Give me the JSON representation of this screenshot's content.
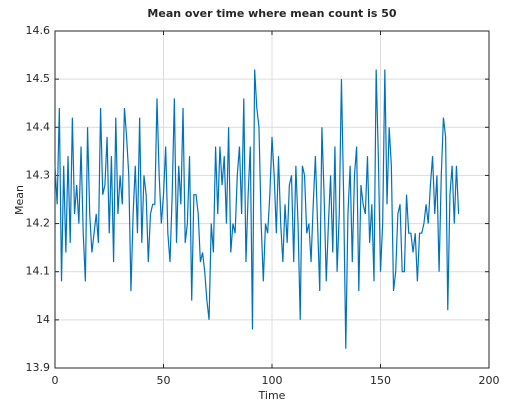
{
  "chart_data": {
    "type": "line",
    "title": "Mean over time where mean count is 50",
    "xlabel": "Time",
    "ylabel": "Mean",
    "color": "#0072bd",
    "grid": true,
    "xlim": [
      0,
      200
    ],
    "xticks": [
      0,
      50,
      100,
      150,
      200
    ],
    "ylim": [
      13.9,
      14.6
    ],
    "yticks": [
      13.9,
      14,
      14.1,
      14.2,
      14.3,
      14.4,
      14.5,
      14.6
    ],
    "x": [
      0,
      1,
      2,
      3,
      4,
      5,
      6,
      7,
      8,
      9,
      10,
      11,
      12,
      13,
      14,
      15,
      16,
      17,
      18,
      19,
      20,
      21,
      22,
      23,
      24,
      25,
      26,
      27,
      28,
      29,
      30,
      31,
      32,
      33,
      34,
      35,
      36,
      37,
      38,
      39,
      40,
      41,
      42,
      43,
      44,
      45,
      46,
      47,
      48,
      49,
      50,
      51,
      52,
      53,
      54,
      55,
      56,
      57,
      58,
      59,
      60,
      61,
      62,
      63,
      64,
      65,
      66,
      67,
      68,
      69,
      70,
      71,
      72,
      73,
      74,
      75,
      76,
      77,
      78,
      79,
      80,
      81,
      82,
      83,
      84,
      85,
      86,
      87,
      88,
      89,
      90,
      91,
      92,
      93,
      94,
      95,
      96,
      97,
      98,
      99,
      100,
      101,
      102,
      103,
      104,
      105,
      106,
      107,
      108,
      109,
      110,
      111,
      112,
      113,
      114,
      115,
      116,
      117,
      118,
      119,
      120,
      121,
      122,
      123,
      124,
      125,
      126,
      127,
      128,
      129,
      130,
      131,
      132,
      133,
      134,
      135,
      136,
      137,
      138,
      139,
      140,
      141,
      142,
      143,
      144,
      145,
      146,
      147,
      148,
      149,
      150,
      151,
      152,
      153,
      154,
      155,
      156,
      157,
      158,
      159,
      160,
      161,
      162,
      163,
      164,
      165,
      166,
      167,
      168,
      169,
      170,
      171,
      172,
      173,
      174,
      175,
      176,
      177,
      178,
      179,
      180,
      181,
      182,
      183,
      184,
      185,
      186
    ],
    "values": [
      14.32,
      14.24,
      14.44,
      14.08,
      14.32,
      14.14,
      14.34,
      14.16,
      14.42,
      14.22,
      14.28,
      14.2,
      14.36,
      14.18,
      14.08,
      14.4,
      14.22,
      14.14,
      14.18,
      14.22,
      14.16,
      14.44,
      14.26,
      14.28,
      14.38,
      14.18,
      14.34,
      14.12,
      14.42,
      14.22,
      14.3,
      14.24,
      14.44,
      14.38,
      14.3,
      14.06,
      14.22,
      14.32,
      14.18,
      14.42,
      14.16,
      14.3,
      14.26,
      14.12,
      14.22,
      14.24,
      14.24,
      14.46,
      14.3,
      14.2,
      14.26,
      14.36,
      14.18,
      14.12,
      14.26,
      14.46,
      14.16,
      14.32,
      14.24,
      14.44,
      14.16,
      14.2,
      14.34,
      14.04,
      14.26,
      14.26,
      14.22,
      14.12,
      14.14,
      14.1,
      14.04,
      14.0,
      14.2,
      14.14,
      14.36,
      14.22,
      14.36,
      14.28,
      14.34,
      14.2,
      14.4,
      14.14,
      14.2,
      14.18,
      14.3,
      14.36,
      14.22,
      14.46,
      14.12,
      14.26,
      14.36,
      13.98,
      14.52,
      14.44,
      14.4,
      14.2,
      14.08,
      14.2,
      14.18,
      14.26,
      14.38,
      14.3,
      14.18,
      14.34,
      14.2,
      14.12,
      14.24,
      14.16,
      14.28,
      14.3,
      14.12,
      14.32,
      14.2,
      14.0,
      14.32,
      14.3,
      14.18,
      14.2,
      14.12,
      14.24,
      14.34,
      14.2,
      14.06,
      14.4,
      14.26,
      14.08,
      14.2,
      14.3,
      14.14,
      14.36,
      14.1,
      14.22,
      14.5,
      14.26,
      13.94,
      14.22,
      14.32,
      14.12,
      14.3,
      14.36,
      14.06,
      14.28,
      14.24,
      14.22,
      14.34,
      14.16,
      14.24,
      14.08,
      14.52,
      14.34,
      14.1,
      14.2,
      14.52,
      14.24,
      14.4,
      14.32,
      14.06,
      14.1,
      14.22,
      14.24,
      14.1,
      14.1,
      14.26,
      14.18,
      14.18,
      14.14,
      14.18,
      14.08,
      14.18,
      14.18,
      14.2,
      14.24,
      14.2,
      14.28,
      14.34,
      14.22,
      14.3,
      14.1,
      14.3,
      14.42,
      14.38,
      14.02,
      14.26,
      14.32,
      14.2,
      14.32,
      14.22
    ]
  }
}
